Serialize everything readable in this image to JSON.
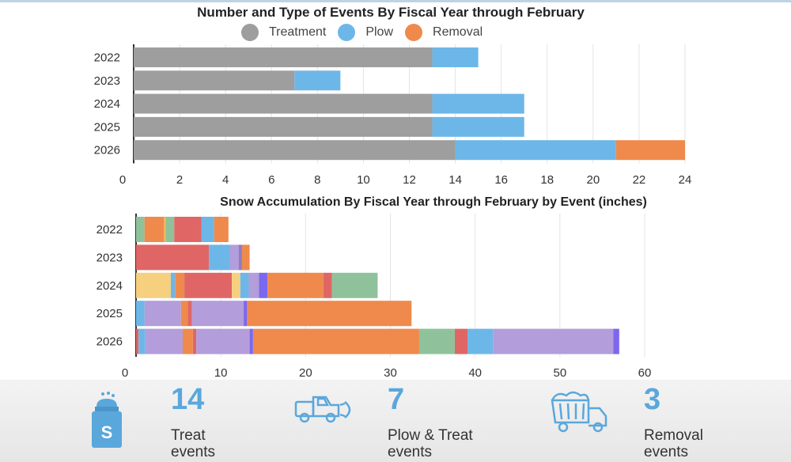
{
  "chart_data": [
    {
      "type": "bar",
      "orientation": "horizontal",
      "stacked": true,
      "title": "Number and Type of Events By Fiscal Year through February",
      "categories": [
        "2022",
        "2023",
        "2024",
        "2025",
        "2026"
      ],
      "series": [
        {
          "name": "Treatment",
          "color": "#9e9e9e",
          "values": [
            13,
            7,
            13,
            13,
            14
          ]
        },
        {
          "name": "Plow",
          "color": "#6db7e8",
          "values": [
            2,
            2,
            4,
            4,
            7
          ]
        },
        {
          "name": "Removal",
          "color": "#ef8a4c",
          "values": [
            0,
            0,
            0,
            0,
            3
          ]
        }
      ],
      "xlim": [
        0,
        24
      ],
      "xticks": [
        "0",
        "2",
        "4",
        "6",
        "8",
        "10",
        "12",
        "14",
        "16",
        "18",
        "20",
        "22",
        "24"
      ],
      "grid": true,
      "legend": "top-center"
    },
    {
      "type": "bar",
      "orientation": "horizontal",
      "stacked": true,
      "title": "Snow Accumulation By Fiscal Year through February by Event (inches)",
      "categories": [
        "2022",
        "2023",
        "2024",
        "2025",
        "2026"
      ],
      "segments": [
        [
          [
            1.0,
            "#8fc29b"
          ],
          [
            2.3,
            "#ef8a4c"
          ],
          [
            0.2,
            "#f0b95a"
          ],
          [
            1.0,
            "#8fc29b"
          ],
          [
            3.2,
            "#e06666"
          ],
          [
            1.5,
            "#6db7e8"
          ],
          [
            1.7,
            "#ef8a4c"
          ]
        ],
        [
          [
            8.6,
            "#e06666"
          ],
          [
            2.5,
            "#6db7e8"
          ],
          [
            1.0,
            "#b39ddb"
          ],
          [
            0.4,
            "#8e7cc3"
          ],
          [
            0.9,
            "#ef8a4c"
          ]
        ],
        [
          [
            4.1,
            "#f6d07f"
          ],
          [
            0.5,
            "#6db7e8"
          ],
          [
            1.1,
            "#ef8a4c"
          ],
          [
            5.6,
            "#e06666"
          ],
          [
            1.0,
            "#f6d07f"
          ],
          [
            1.0,
            "#6db7e8"
          ],
          [
            1.2,
            "#b39ddb"
          ],
          [
            1.0,
            "#7b68ee"
          ],
          [
            6.6,
            "#ef8a4c"
          ],
          [
            1.0,
            "#e06666"
          ],
          [
            5.4,
            "#8fc29b"
          ]
        ],
        [
          [
            1.0,
            "#6db7e8"
          ],
          [
            4.3,
            "#b39ddb"
          ],
          [
            0.8,
            "#ef8a4c"
          ],
          [
            0.5,
            "#e06666"
          ],
          [
            6.1,
            "#b39ddb"
          ],
          [
            0.4,
            "#7b68ee"
          ],
          [
            19.4,
            "#ef8a4c"
          ]
        ],
        [
          [
            0.3,
            "#e06666"
          ],
          [
            0.8,
            "#6db7e8"
          ],
          [
            4.4,
            "#b39ddb"
          ],
          [
            1.2,
            "#ef8a4c"
          ],
          [
            0.4,
            "#e06666"
          ],
          [
            6.3,
            "#b39ddb"
          ],
          [
            0.4,
            "#7b68ee"
          ],
          [
            19.6,
            "#ef8a4c"
          ],
          [
            4.2,
            "#8fc29b"
          ],
          [
            1.5,
            "#e06666"
          ],
          [
            3.0,
            "#6db7e8"
          ],
          [
            14.2,
            "#b39ddb"
          ],
          [
            0.7,
            "#7b68ee"
          ]
        ]
      ],
      "xlim": [
        0,
        60
      ],
      "xticks": [
        "0",
        "10",
        "20",
        "30",
        "40",
        "50",
        "60"
      ],
      "grid": true
    }
  ],
  "summary": {
    "treat": {
      "number": "14",
      "label_line1": "Treat",
      "label_line2": "events"
    },
    "plow": {
      "number": "7",
      "label_line1": "Plow & Treat",
      "label_line2": "events"
    },
    "removal": {
      "number": "3",
      "label_line1": "Removal",
      "label_line2": "events"
    },
    "icons": [
      "salt-shaker-icon",
      "plow-truck-icon",
      "dump-truck-icon"
    ]
  }
}
